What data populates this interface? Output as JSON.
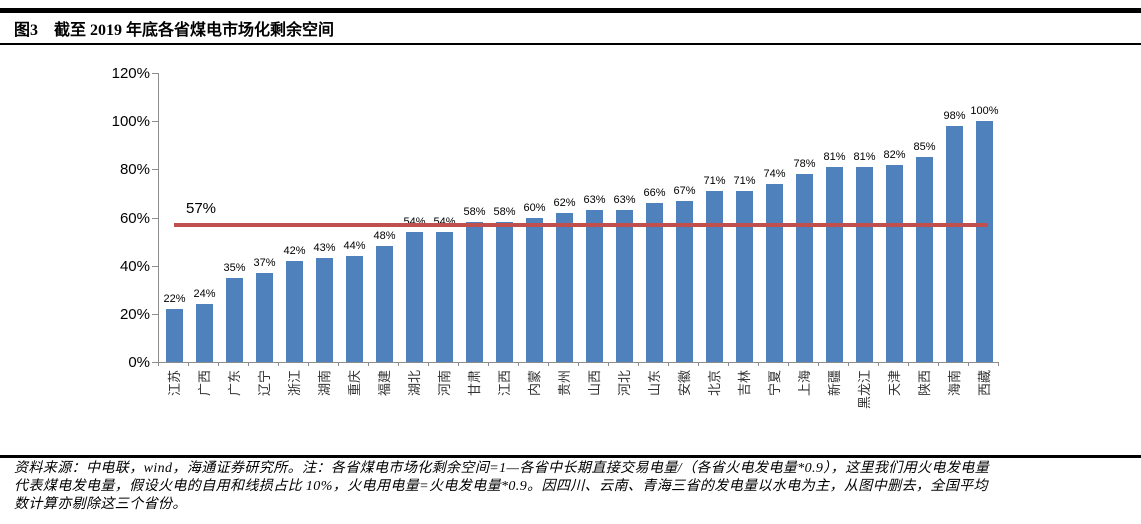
{
  "header": {
    "figure_label": "图3",
    "title": "截至 2019 年底各省煤电市场化剩余空间"
  },
  "chart_data": {
    "type": "bar",
    "title": "截至2019年底各省煤电市场化剩余空间",
    "categories": [
      "江苏",
      "广西",
      "广东",
      "辽宁",
      "浙江",
      "湖南",
      "重庆",
      "福建",
      "湖北",
      "河南",
      "甘肃",
      "江西",
      "内蒙",
      "贵州",
      "山西",
      "河北",
      "山东",
      "安徽",
      "北京",
      "吉林",
      "宁夏",
      "上海",
      "新疆",
      "黑龙江",
      "天津",
      "陕西",
      "海南",
      "西藏"
    ],
    "values": [
      22,
      24,
      35,
      37,
      42,
      43,
      44,
      48,
      54,
      54,
      58,
      58,
      60,
      62,
      63,
      63,
      66,
      67,
      71,
      71,
      74,
      78,
      81,
      81,
      82,
      85,
      98,
      100
    ],
    "unit": "%",
    "y_ticks": [
      "0%",
      "20%",
      "40%",
      "60%",
      "80%",
      "100%",
      "120%"
    ],
    "ylim": [
      0,
      120
    ],
    "grid": false,
    "legend": "none",
    "bar_color": "#4F81BD",
    "axis_color": "#8c8c8c",
    "average_line": {
      "value": 57,
      "label": "57%",
      "color": "#C0504D"
    }
  },
  "footer": {
    "source_note_lines": [
      "资料来源：中电联，wind，海通证券研究所。注：各省煤电市场化剩余空间=1—各省中长期直接交易电量/（各省火电发电量*0.9），这里我们用火电发电量",
      "代表煤电发电量，假设火电的自用和线损占比 10%，火电用电量=火电发电量*0.9。因四川、云南、青海三省的发电量以水电为主，从图中删去，全国平均",
      "数计算亦剔除这三个省份。"
    ]
  }
}
